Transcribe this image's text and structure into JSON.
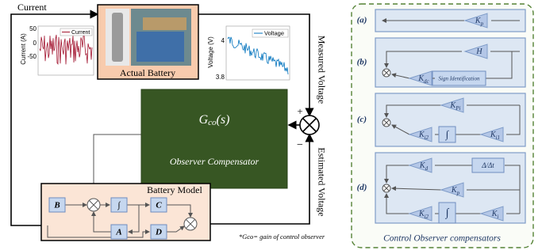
{
  "left": {
    "current_label": "Current",
    "battery_title": "Actual Battery",
    "current_plot": {
      "ylabel": "Current (A)",
      "yticks": [
        "50",
        "0",
        "-50"
      ],
      "legend": "Current"
    },
    "voltage_plot": {
      "ylabel": "Voltage (V)",
      "yticks": [
        "4",
        "3.8"
      ],
      "legend": "Voltage"
    },
    "measured": "Measured Voltage",
    "estimated": "Estimated Voltage",
    "plus": "+",
    "minus": "−",
    "compensator": {
      "g": "G",
      "sub": "co",
      "arg": "(s)",
      "name": "Observer Compensator"
    },
    "model": {
      "title": "Battery Model",
      "blocks": [
        "B",
        "∫",
        "C",
        "A",
        "D"
      ]
    },
    "footnote": "*Gco= gain of control observer"
  },
  "right": {
    "panels": [
      {
        "label": "(a)",
        "gains": [
          {
            "k": "K",
            "sub": "p"
          }
        ]
      },
      {
        "label": "(b)",
        "gains": [
          {
            "k": "H"
          },
          {
            "k": "K",
            "sub": "dc"
          }
        ],
        "boxes": [
          "Sign Identification"
        ]
      },
      {
        "label": "(c)",
        "gains": [
          {
            "k": "K",
            "sub": "Pi"
          },
          {
            "k": "K",
            "sub": "i2"
          },
          {
            "k": "K",
            "sub": "i1"
          }
        ],
        "boxes": [
          "∫"
        ]
      },
      {
        "label": "(d)",
        "gains": [
          {
            "k": "K",
            "sub": "d"
          },
          {
            "k": "K",
            "sub": "p"
          },
          {
            "k": "K",
            "sub": "i2"
          },
          {
            "k": "K",
            "sub": "i"
          }
        ],
        "boxes": [
          "Δ/Δt",
          "∫"
        ]
      }
    ],
    "caption": "Control Observer compensators"
  }
}
